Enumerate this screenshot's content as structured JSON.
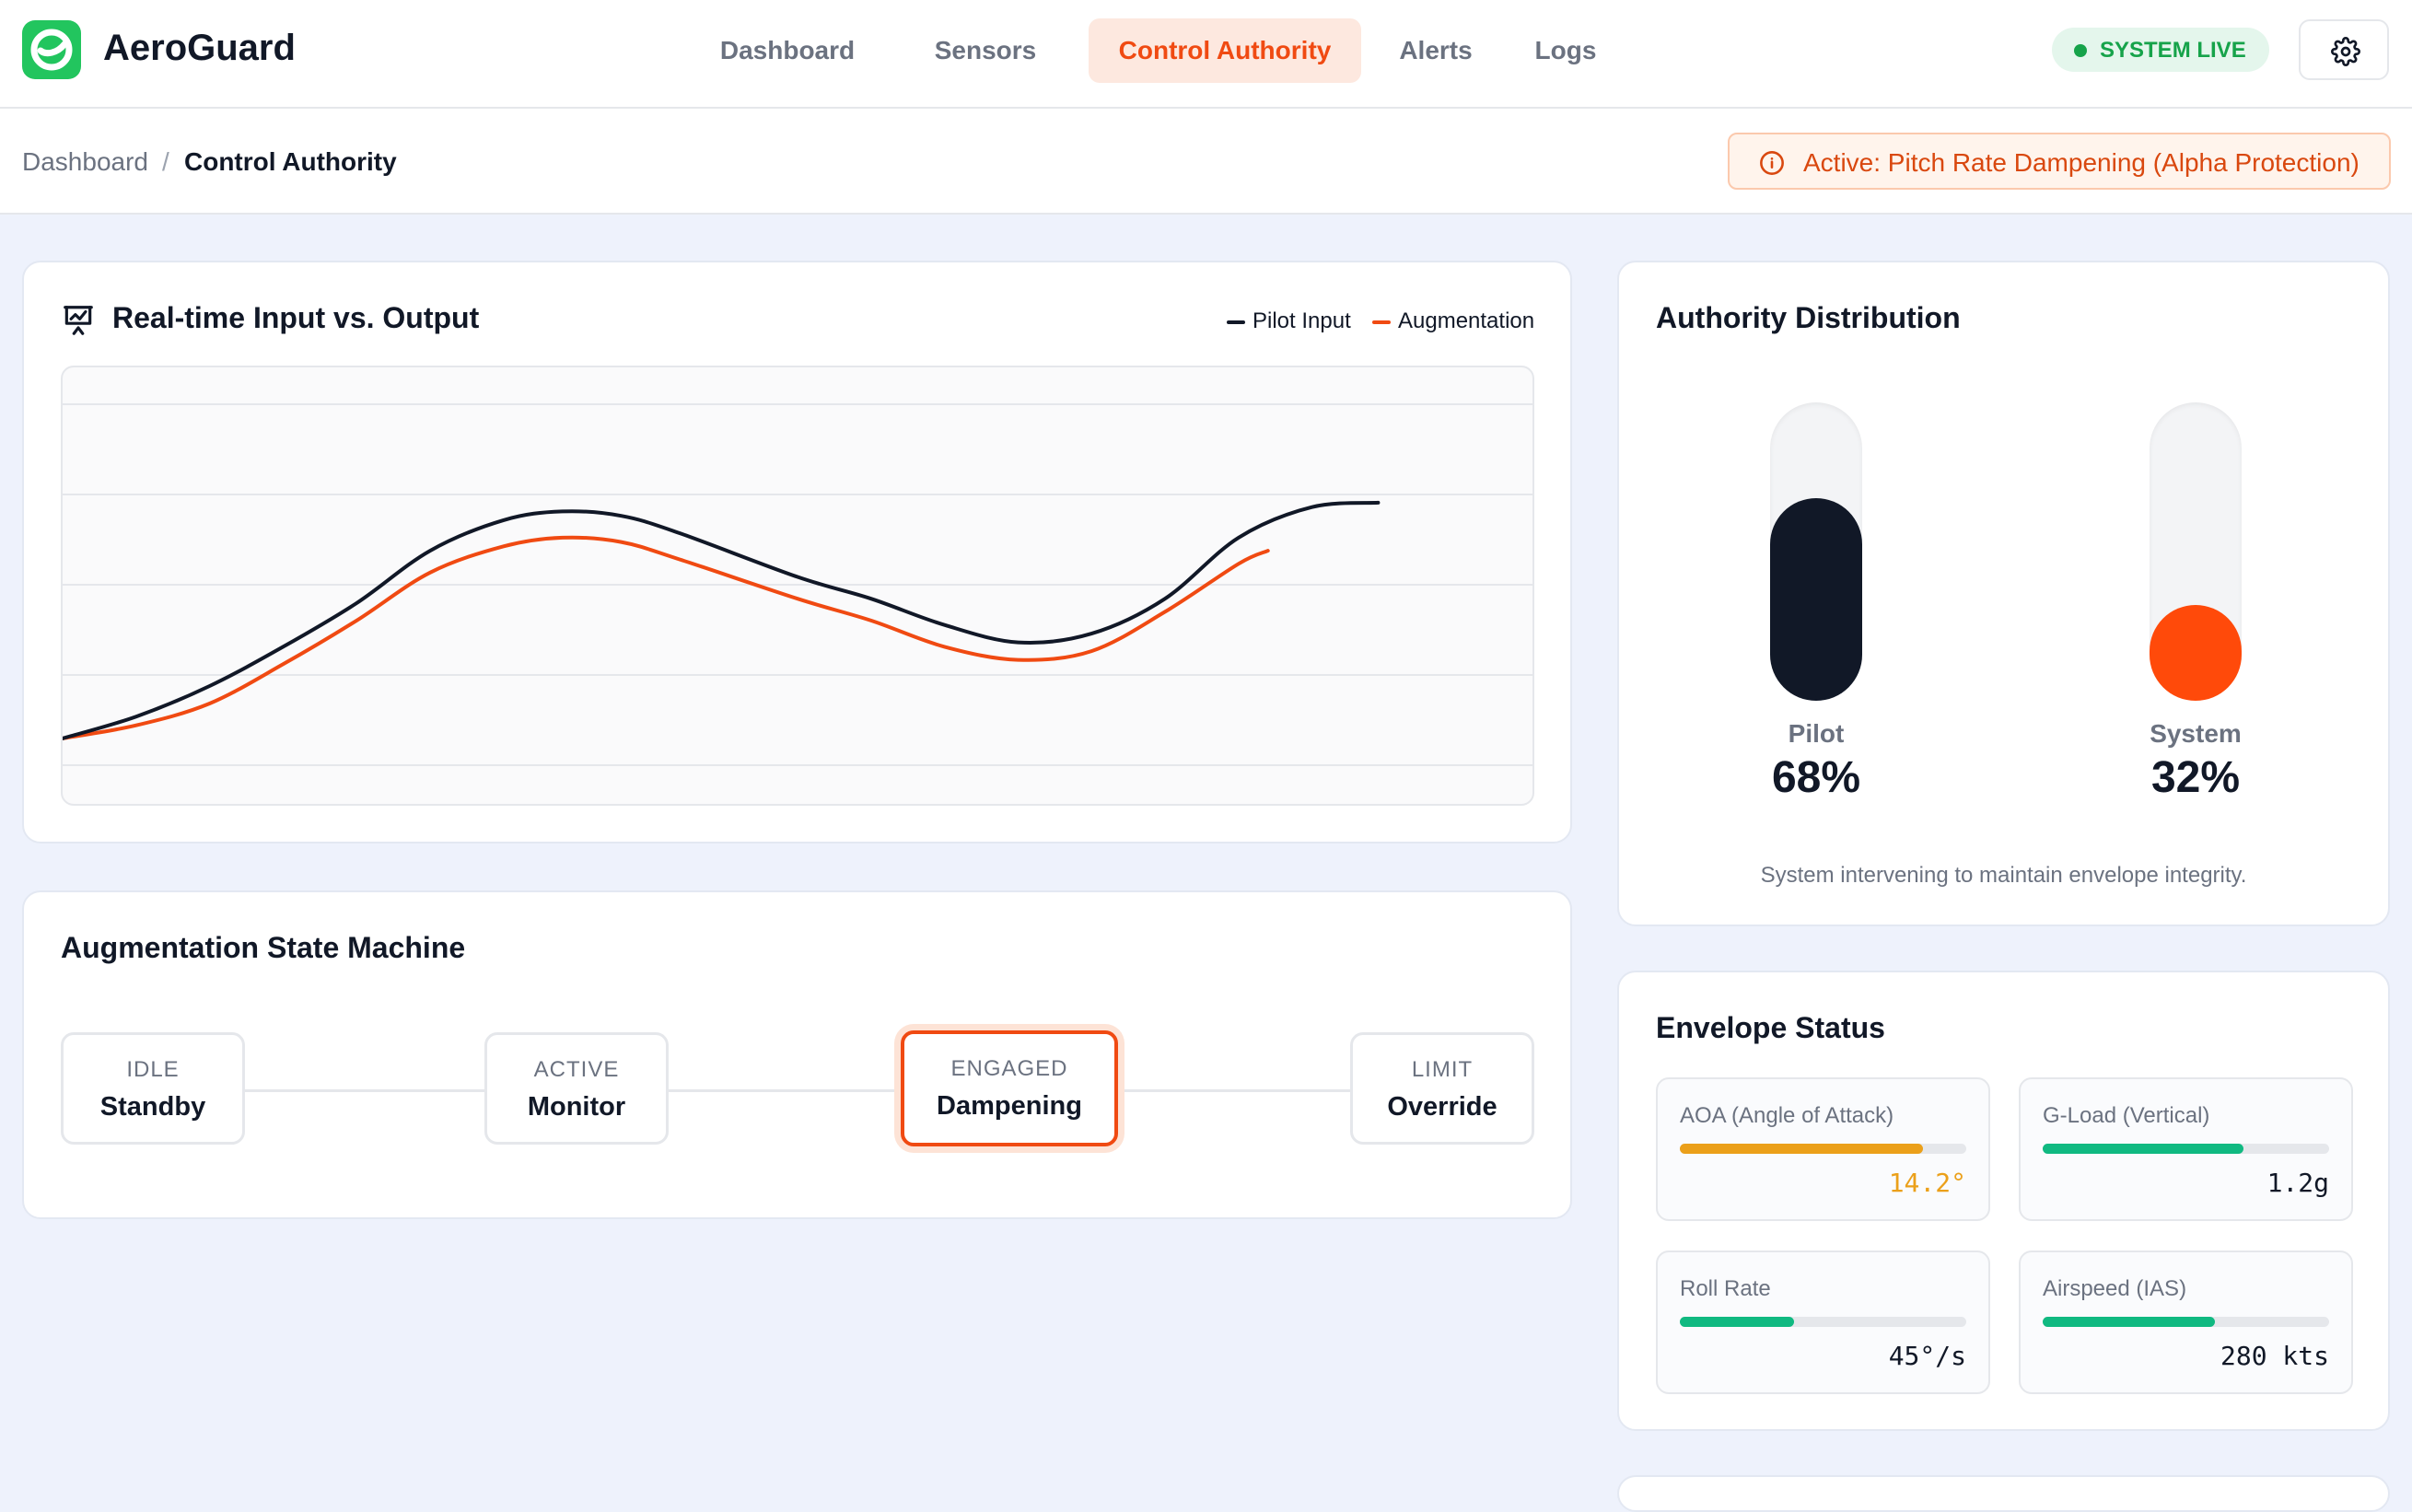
{
  "app": {
    "brand": "AeroGuard",
    "logo_icon": "logo-icon"
  },
  "nav": {
    "items": [
      {
        "label": "Dashboard",
        "active": false
      },
      {
        "label": "Sensors",
        "active": false
      },
      {
        "label": "Control Authority",
        "active": true
      },
      {
        "label": "Alerts",
        "active": false
      },
      {
        "label": "Logs",
        "active": false
      }
    ]
  },
  "status": {
    "label": "SYSTEM LIVE",
    "color": "#16a34a"
  },
  "settings": {
    "icon": "gear-icon"
  },
  "breadcrumb": {
    "root": "Dashboard",
    "separator": "/",
    "current": "Control Authority"
  },
  "banner": {
    "text": "Active: Pitch Rate Dampening (Alpha Protection)",
    "icon": "info-icon",
    "color": "#d9480f"
  },
  "chart": {
    "title": "Real-time Input vs. Output",
    "icon": "presentation-chart-icon"
  },
  "chart_data": {
    "type": "line",
    "title": "Real-time Input vs. Output",
    "legend_placement": "top-right",
    "grid": true,
    "series": [
      {
        "name": "Pilot Input",
        "color": "#111827",
        "points": [
          [
            0,
            0.15
          ],
          [
            0.05,
            0.2
          ],
          [
            0.1,
            0.27
          ],
          [
            0.15,
            0.36
          ],
          [
            0.2,
            0.46
          ],
          [
            0.25,
            0.58
          ],
          [
            0.3,
            0.65
          ],
          [
            0.34,
            0.67
          ],
          [
            0.38,
            0.66
          ],
          [
            0.42,
            0.62
          ],
          [
            0.5,
            0.52
          ],
          [
            0.55,
            0.47
          ],
          [
            0.6,
            0.41
          ],
          [
            0.65,
            0.37
          ],
          [
            0.7,
            0.39
          ],
          [
            0.75,
            0.47
          ],
          [
            0.8,
            0.61
          ],
          [
            0.85,
            0.68
          ],
          [
            0.895,
            0.69
          ]
        ]
      },
      {
        "name": "Augmentation",
        "color": "#f04a12",
        "points": [
          [
            0,
            0.15
          ],
          [
            0.05,
            0.18
          ],
          [
            0.1,
            0.23
          ],
          [
            0.15,
            0.32
          ],
          [
            0.2,
            0.42
          ],
          [
            0.25,
            0.53
          ],
          [
            0.3,
            0.59
          ],
          [
            0.34,
            0.61
          ],
          [
            0.38,
            0.6
          ],
          [
            0.42,
            0.56
          ],
          [
            0.5,
            0.47
          ],
          [
            0.55,
            0.42
          ],
          [
            0.6,
            0.36
          ],
          [
            0.65,
            0.33
          ],
          [
            0.7,
            0.35
          ],
          [
            0.75,
            0.44
          ],
          [
            0.8,
            0.55
          ],
          [
            0.82,
            0.58
          ]
        ]
      }
    ],
    "ylim": [
      0,
      1
    ],
    "xlim": [
      0,
      1
    ]
  },
  "state_machine": {
    "title": "Augmentation State Machine",
    "states": [
      {
        "top": "IDLE",
        "name": "Standby",
        "current": false
      },
      {
        "top": "ACTIVE",
        "name": "Monitor",
        "current": false
      },
      {
        "top": "ENGAGED",
        "name": "Dampening",
        "current": true
      },
      {
        "top": "LIMIT",
        "name": "Override",
        "current": false
      }
    ]
  },
  "authority": {
    "title": "Authority Distribution",
    "pilot": {
      "label": "Pilot",
      "value": "68%",
      "fraction": 0.68,
      "color": "#111827"
    },
    "system": {
      "label": "System",
      "value": "32%",
      "fraction": 0.32,
      "color": "#ff4a0a"
    },
    "note": "System intervening to maintain envelope integrity."
  },
  "envelope": {
    "title": "Envelope Status",
    "metrics": [
      {
        "label": "AOA (Angle of Attack)",
        "value": "14.2°",
        "fraction": 0.85,
        "color": "#eba01a",
        "value_color": "#eba01a"
      },
      {
        "label": "G-Load (Vertical)",
        "value": "1.2g",
        "fraction": 0.7,
        "color": "#10b981",
        "value_color": "#111827"
      },
      {
        "label": "Roll Rate",
        "value": "45°/s",
        "fraction": 0.4,
        "color": "#10b981",
        "value_color": "#111827"
      },
      {
        "label": "Airspeed (IAS)",
        "value": "280 kts",
        "fraction": 0.6,
        "color": "#10b981",
        "value_color": "#111827"
      }
    ]
  }
}
